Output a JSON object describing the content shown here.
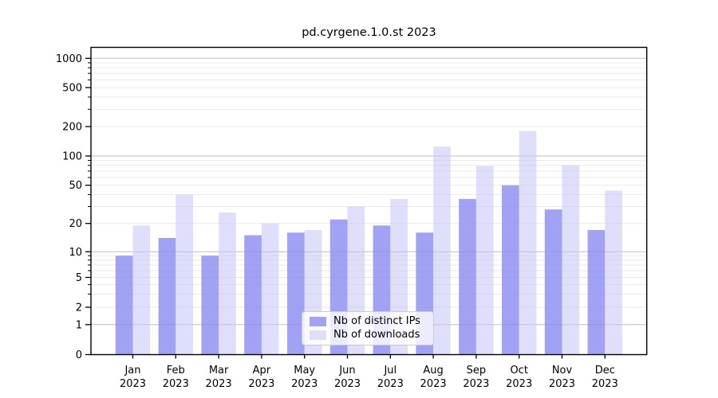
{
  "chart_data": {
    "type": "bar",
    "title": "pd.cyrgene.1.0.st 2023",
    "months": [
      "Jan",
      "Feb",
      "Mar",
      "Apr",
      "May",
      "Jun",
      "Jul",
      "Aug",
      "Sep",
      "Oct",
      "Nov",
      "Dec"
    ],
    "year": "2023",
    "y_scale": "symlog",
    "y_tick_labels": [
      "0",
      "1",
      "2",
      "5",
      "10",
      "20",
      "50",
      "100",
      "200",
      "500",
      "1000"
    ],
    "ylim": [
      0,
      1300
    ],
    "grid": true,
    "legend_position": "lower center",
    "series": [
      {
        "name": "Nb of distinct IPs",
        "values": [
          9,
          14,
          9,
          15,
          16,
          22,
          19,
          16,
          36,
          50,
          28,
          17
        ],
        "color": "#a2a2f4",
        "fill_rgba": "rgba(139,139,242,0.8)"
      },
      {
        "name": "Nb of downloads",
        "values": [
          19,
          40,
          26,
          20,
          17,
          30,
          36,
          125,
          79,
          180,
          80,
          44
        ],
        "color": "#dfdffa",
        "fill_rgba": "rgba(197,197,247,0.55)"
      }
    ],
    "colors": {
      "grid_major": "#bdbdbd",
      "grid_minor": "#e8e8e8",
      "axis": "#000000",
      "background": "#ffffff"
    }
  }
}
